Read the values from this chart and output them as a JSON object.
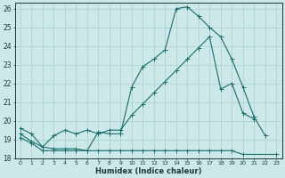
{
  "xlabel": "Humidex (Indice chaleur)",
  "background_color": "#cce8e8",
  "grid_color": "#aacfcf",
  "line_color": "#1a6e6e",
  "xlim": [
    -0.5,
    23.5
  ],
  "ylim": [
    18,
    26.3
  ],
  "yticks": [
    18,
    19,
    20,
    21,
    22,
    23,
    24,
    25,
    26
  ],
  "xticks": [
    0,
    1,
    2,
    3,
    4,
    5,
    6,
    7,
    8,
    9,
    10,
    11,
    12,
    13,
    14,
    15,
    16,
    17,
    18,
    19,
    20,
    21,
    22,
    23
  ],
  "line1_x": [
    0,
    1,
    2,
    3,
    4,
    5,
    6,
    7,
    8,
    9,
    10,
    11,
    12,
    13,
    14,
    15,
    16,
    17,
    18,
    19,
    20,
    21,
    22
  ],
  "line1_y": [
    19.6,
    19.3,
    18.6,
    18.5,
    18.5,
    18.5,
    18.4,
    19.4,
    19.3,
    19.3,
    21.8,
    22.9,
    23.3,
    23.8,
    26.0,
    26.1,
    25.6,
    25.0,
    24.5,
    23.3,
    21.8,
    20.2,
    19.2
  ],
  "line2_x": [
    0,
    1,
    2,
    3,
    4,
    5,
    6,
    7,
    8,
    9,
    10,
    11,
    12,
    13,
    14,
    15,
    16,
    17,
    18,
    19,
    20,
    23
  ],
  "line2_y": [
    19.1,
    18.8,
    18.4,
    18.4,
    18.4,
    18.4,
    18.4,
    18.4,
    18.4,
    18.4,
    18.4,
    18.4,
    18.4,
    18.4,
    18.4,
    18.4,
    18.4,
    18.4,
    18.4,
    18.4,
    18.2,
    18.2
  ],
  "line3_x": [
    0,
    1,
    2,
    3,
    4,
    5,
    6,
    7,
    8,
    9,
    10,
    11,
    12,
    13,
    14,
    15,
    16,
    17,
    18,
    19,
    20,
    21
  ],
  "line3_y": [
    19.3,
    18.9,
    18.6,
    19.2,
    19.5,
    19.3,
    19.5,
    19.3,
    19.5,
    19.5,
    20.3,
    20.9,
    21.5,
    22.1,
    22.7,
    23.3,
    23.9,
    24.5,
    21.7,
    22.0,
    20.4,
    20.1
  ]
}
